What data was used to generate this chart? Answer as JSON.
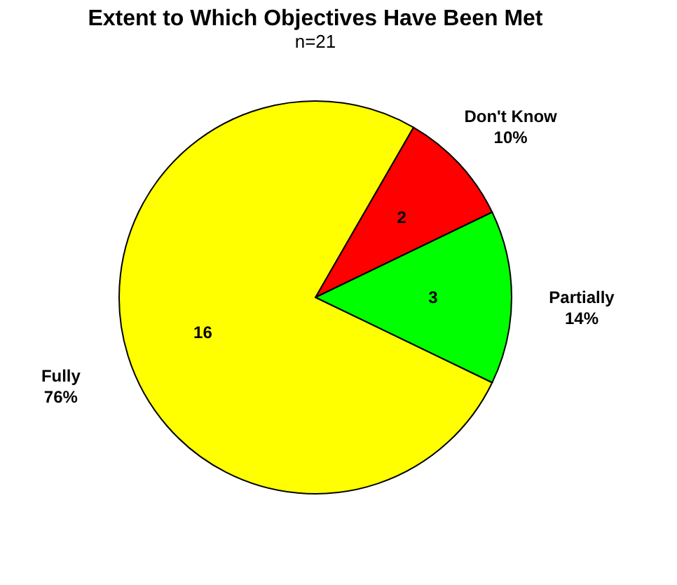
{
  "chart_data": {
    "type": "pie",
    "title": "Extent to Which Objectives Have Been Met",
    "subtitle": "n=21",
    "categories": [
      "Don't Know",
      "Partially",
      "Fully"
    ],
    "values": [
      2,
      3,
      16
    ],
    "colors": [
      "#ff0000",
      "#00ff00",
      "#ffff00"
    ],
    "data_labels": true,
    "annotations": [
      "10%",
      "14%",
      "76%"
    ],
    "legend": false
  }
}
